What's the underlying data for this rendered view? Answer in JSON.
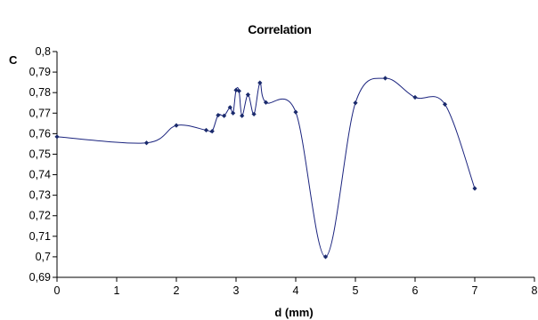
{
  "chart_data": {
    "type": "scatter",
    "title": "Correlation",
    "xlabel": "d (mm)",
    "ylabel": "C",
    "xlim": [
      0,
      8
    ],
    "ylim": [
      0.69,
      0.8
    ],
    "x_ticks": [
      {
        "value": 0,
        "label": "0"
      },
      {
        "value": 1,
        "label": "1"
      },
      {
        "value": 2,
        "label": "2"
      },
      {
        "value": 3,
        "label": "3"
      },
      {
        "value": 4,
        "label": "4"
      },
      {
        "value": 5,
        "label": "5"
      },
      {
        "value": 6,
        "label": "6"
      },
      {
        "value": 7,
        "label": "7"
      },
      {
        "value": 8,
        "label": "8"
      }
    ],
    "y_ticks": [
      {
        "value": 0.69,
        "label": "0,69"
      },
      {
        "value": 0.7,
        "label": "0,7"
      },
      {
        "value": 0.71,
        "label": "0,71"
      },
      {
        "value": 0.72,
        "label": "0,72"
      },
      {
        "value": 0.73,
        "label": "0,73"
      },
      {
        "value": 0.74,
        "label": "0,74"
      },
      {
        "value": 0.75,
        "label": "0,75"
      },
      {
        "value": 0.76,
        "label": "0,76"
      },
      {
        "value": 0.77,
        "label": "0,77"
      },
      {
        "value": 0.78,
        "label": "0,78"
      },
      {
        "value": 0.79,
        "label": "0,79"
      },
      {
        "value": 0.8,
        "label": "0,8"
      }
    ],
    "grid": false,
    "smooth_line": true,
    "series": [
      {
        "x": [
          0,
          1.5,
          2,
          2.5,
          2.6,
          2.7,
          2.8,
          2.9,
          2.95,
          3.0,
          3.05,
          3.1,
          3.2,
          3.3,
          3.4,
          3.5,
          4,
          4.5,
          5,
          5.5,
          6,
          6.5,
          7
        ],
        "y": [
          0.7585,
          0.7555,
          0.764,
          0.7617,
          0.7612,
          0.769,
          0.7687,
          0.7728,
          0.77,
          0.7812,
          0.7808,
          0.7687,
          0.779,
          0.7695,
          0.7848,
          0.7752,
          0.7705,
          0.7,
          0.775,
          0.787,
          0.7777,
          0.7743,
          0.7333
        ]
      }
    ]
  },
  "colors": {
    "series": "#1a237e",
    "marker": "#1a2a6c",
    "axis": "#000000"
  }
}
